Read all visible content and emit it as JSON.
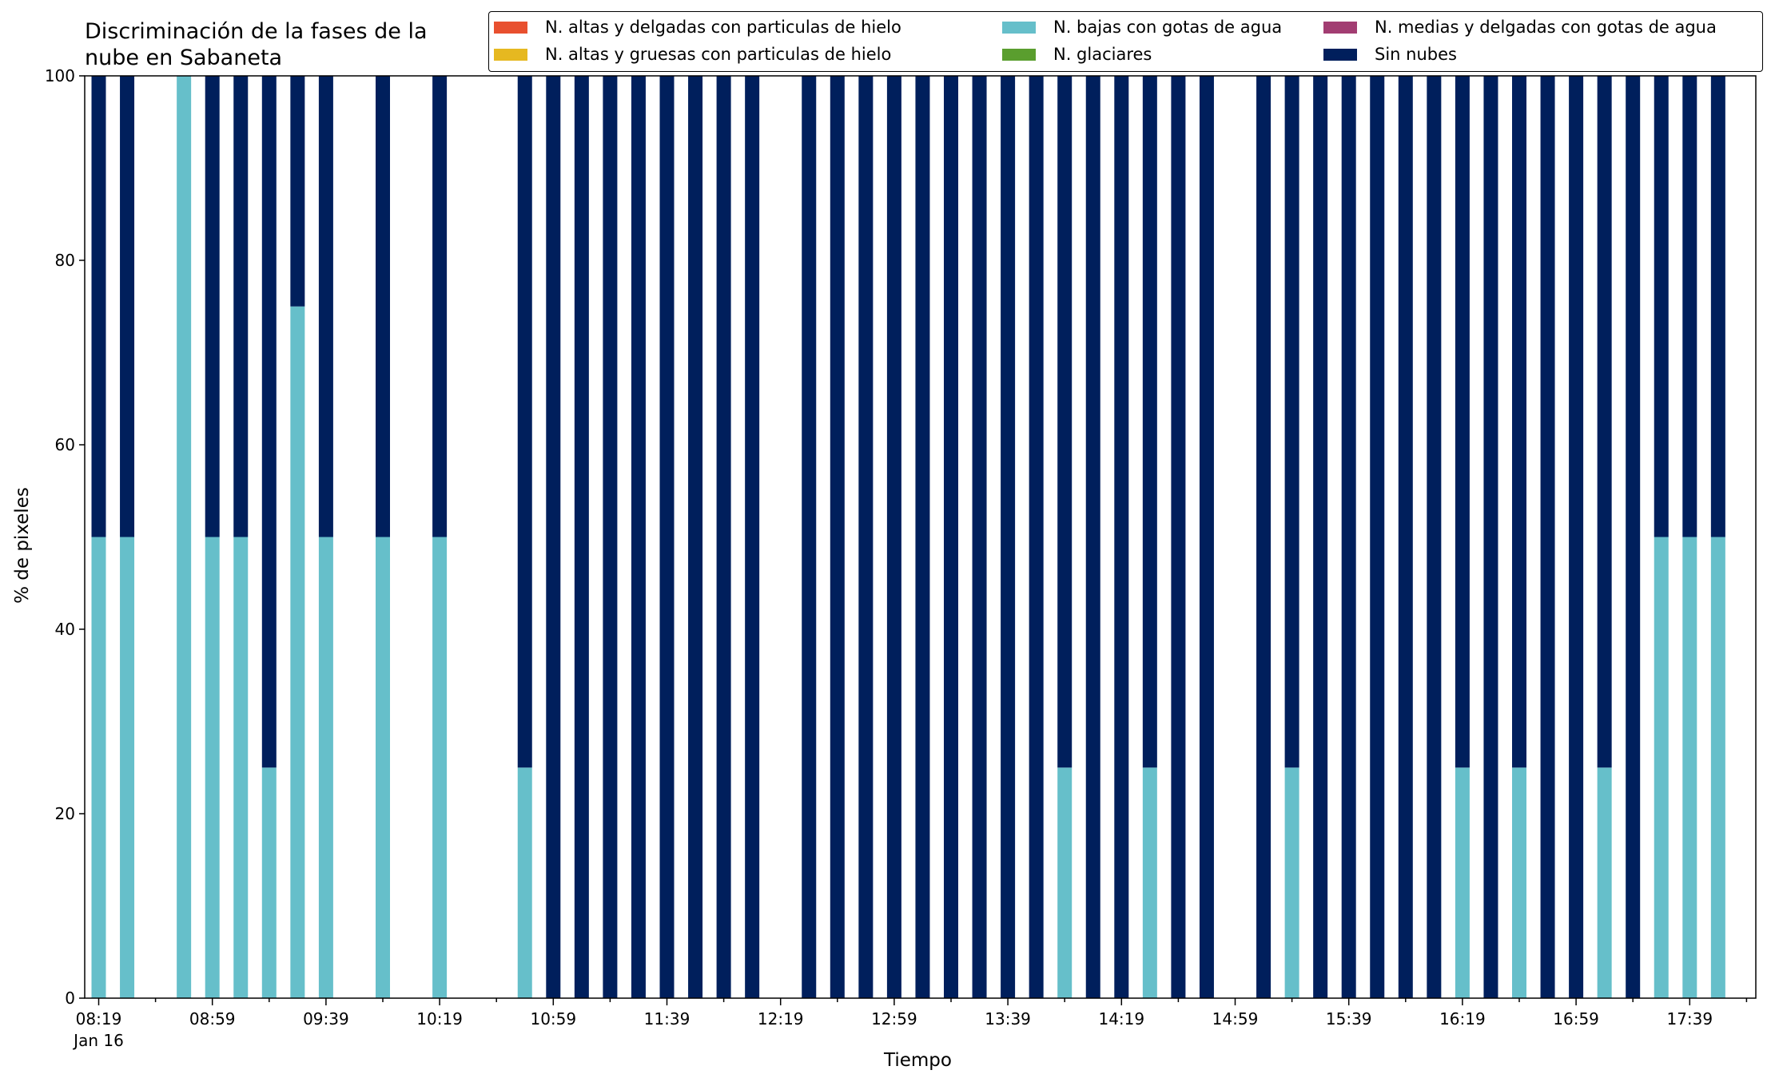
{
  "chart_data": {
    "type": "bar",
    "stacked": true,
    "title_line1": "Discriminación de la fases de la",
    "title_line2": "nube en Sabaneta",
    "xlabel": "Tiempo",
    "ylabel": "% de pixeles",
    "ylim": [
      0,
      100
    ],
    "yticks": [
      "0",
      "20",
      "40",
      "60",
      "80",
      "100"
    ],
    "xtick_labels": [
      "08:19",
      "08:59",
      "09:39",
      "10:19",
      "10:59",
      "11:39",
      "12:19",
      "12:59",
      "13:39",
      "14:19",
      "14:59",
      "15:39",
      "16:19",
      "16:59",
      "17:39"
    ],
    "x_sublabel": "Jan 16",
    "x_start": "08:19",
    "x_step_minutes": 10,
    "legend_placement": "top-right",
    "series": [
      {
        "name": "N. altas y delgadas con particulas de hielo",
        "color": "#e8502f",
        "values": []
      },
      {
        "name": "N. altas y gruesas con particulas de hielo",
        "color": "#e6b820",
        "values": []
      },
      {
        "name": "N. bajas con gotas de agua",
        "color": "#66bfca",
        "values": [
          50,
          50,
          null,
          100,
          50,
          50,
          25,
          75,
          50,
          null,
          50,
          null,
          50,
          null,
          null,
          25,
          0,
          0,
          0,
          0,
          0,
          0,
          0,
          0,
          null,
          0,
          0,
          0,
          0,
          0,
          0,
          0,
          0,
          0,
          25,
          0,
          0,
          25,
          0,
          0,
          null,
          0,
          25,
          0,
          0,
          0,
          0,
          0,
          25,
          0,
          25,
          0,
          0,
          25,
          0,
          50,
          50,
          50
        ]
      },
      {
        "name": "N. glaciares",
        "color": "#5a9e2e",
        "values": []
      },
      {
        "name": "N. medias y delgadas con gotas de agua",
        "color": "#a23d72",
        "values": []
      },
      {
        "name": "Sin nubes",
        "color": "#001f5c",
        "values": [
          50,
          50,
          null,
          0,
          50,
          50,
          75,
          25,
          50,
          null,
          50,
          null,
          50,
          null,
          null,
          75,
          100,
          100,
          100,
          100,
          100,
          100,
          100,
          100,
          null,
          100,
          100,
          100,
          100,
          100,
          100,
          100,
          100,
          100,
          75,
          100,
          100,
          75,
          100,
          100,
          null,
          100,
          75,
          100,
          100,
          100,
          100,
          100,
          75,
          100,
          75,
          100,
          100,
          75,
          100,
          50,
          50,
          50
        ]
      }
    ]
  }
}
